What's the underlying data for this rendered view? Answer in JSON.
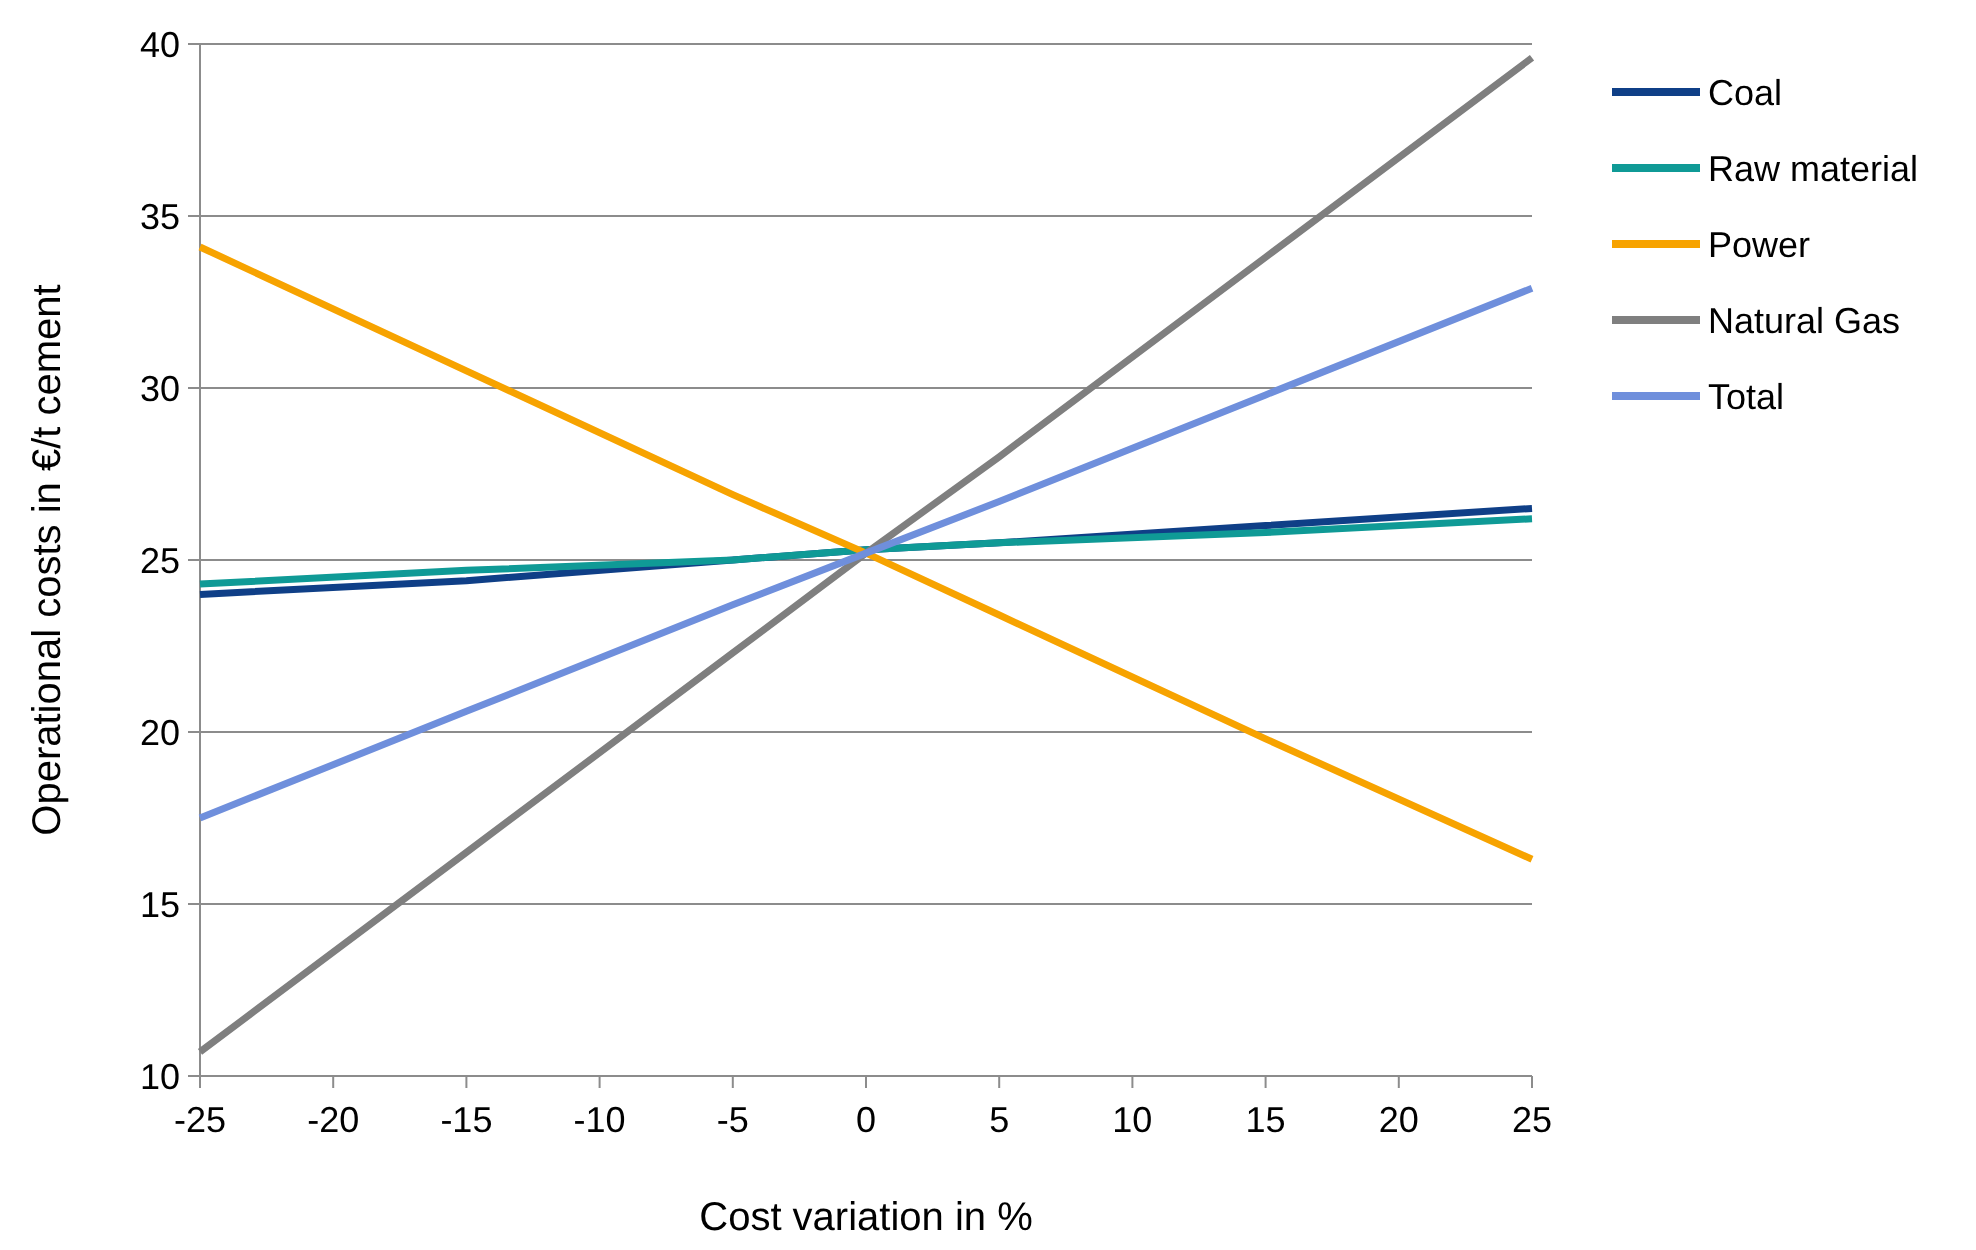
{
  "chart_data": {
    "type": "line",
    "xlabel": "Cost variation in %",
    "ylabel": "Operational costs in €/t cement",
    "x": [
      -25,
      -15,
      -5,
      0,
      5,
      15,
      25
    ],
    "series": [
      {
        "name": "Coal",
        "color": "#0f3f87",
        "values": [
          24.0,
          24.4,
          25.0,
          25.3,
          25.5,
          26.0,
          26.5
        ]
      },
      {
        "name": "Raw material",
        "color": "#0f9a96",
        "values": [
          24.3,
          24.7,
          25.0,
          25.3,
          25.5,
          25.8,
          26.2
        ]
      },
      {
        "name": "Power",
        "color": "#f7a300",
        "values": [
          34.1,
          30.5,
          26.9,
          25.2,
          23.4,
          19.8,
          16.3
        ]
      },
      {
        "name": "Natural Gas",
        "color": "#7f7f7f",
        "values": [
          10.7,
          16.5,
          22.3,
          25.2,
          28.0,
          33.8,
          39.6
        ]
      },
      {
        "name": "Total",
        "color": "#6f8fdc",
        "values": [
          17.5,
          20.6,
          23.7,
          25.2,
          26.7,
          29.8,
          32.9
        ]
      }
    ],
    "xlim": [
      -25,
      25
    ],
    "xticks": [
      -25,
      -20,
      -15,
      -10,
      -5,
      0,
      5,
      10,
      15,
      20,
      25
    ],
    "ylim": [
      10,
      40
    ],
    "yticks": [
      10,
      15,
      20,
      25,
      30,
      35,
      40
    ],
    "grid": "y",
    "legend": "right",
    "marker": "none",
    "line_style": "solid"
  }
}
